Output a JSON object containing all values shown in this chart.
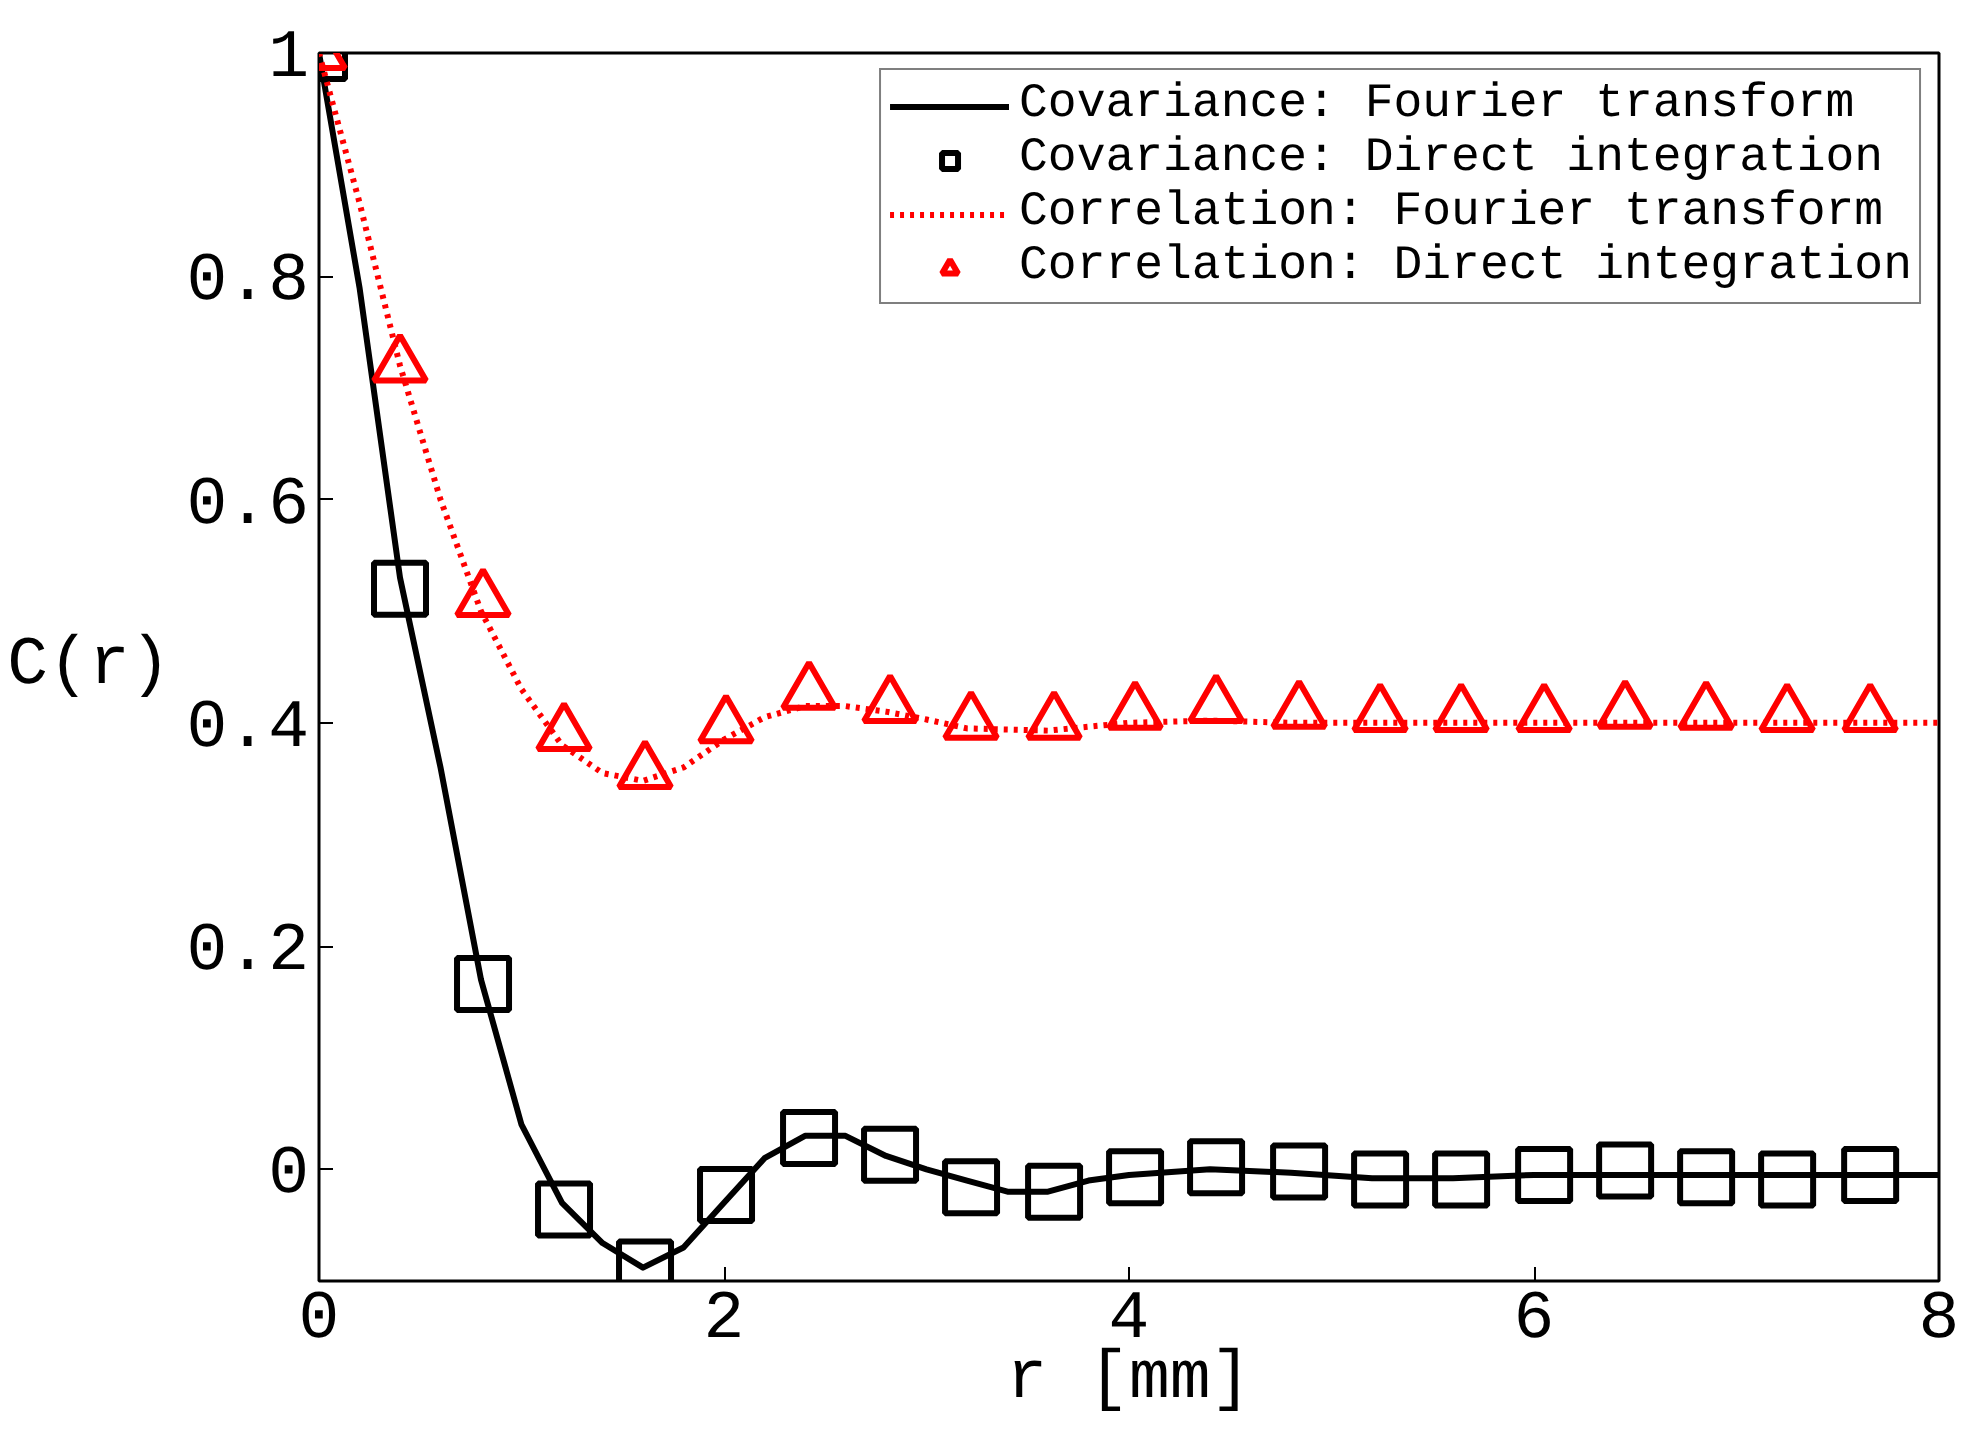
{
  "chart_data": {
    "type": "line",
    "xlabel": "r [mm]",
    "ylabel": "C(r)",
    "xlim": [
      0,
      8
    ],
    "ylim": [
      -0.1,
      1
    ],
    "xticks": [
      0,
      2,
      4,
      6,
      8
    ],
    "yticks": [
      0,
      0.2,
      0.4,
      0.6,
      0.8,
      1
    ],
    "grid": false,
    "legend": "top right",
    "series": [
      {
        "name": "Covariance: Fourier transform",
        "color": "#000000",
        "line_style": "solid",
        "marker": "none",
        "x": [
          0,
          0.2,
          0.4,
          0.6,
          0.8,
          1.0,
          1.2,
          1.4,
          1.6,
          1.8,
          2.0,
          2.2,
          2.4,
          2.6,
          2.8,
          3.0,
          3.2,
          3.4,
          3.6,
          3.8,
          4.0,
          4.4,
          4.8,
          5.2,
          5.6,
          6.0,
          7.0,
          8.0
        ],
        "values": [
          1,
          0.79,
          0.53,
          0.36,
          0.17,
          0.04,
          -0.03,
          -0.066,
          -0.088,
          -0.07,
          -0.03,
          0.01,
          0.03,
          0.03,
          0.012,
          0.0,
          -0.01,
          -0.02,
          -0.02,
          -0.01,
          -0.005,
          0.0,
          -0.003,
          -0.008,
          -0.008,
          -0.005,
          -0.005,
          -0.005
        ]
      },
      {
        "name": "Covariance: Direct integration",
        "type": "scatter",
        "color": "#000000",
        "marker": "square",
        "x": [
          0,
          0.4,
          0.81,
          1.21,
          1.61,
          2.01,
          2.42,
          2.82,
          3.22,
          3.63,
          4.03,
          4.43,
          4.84,
          5.24,
          5.64,
          6.05,
          6.45,
          6.85,
          7.25,
          7.66
        ],
        "values": [
          1,
          0.52,
          0.166,
          -0.036,
          -0.088,
          -0.023,
          0.028,
          0.013,
          -0.016,
          -0.02,
          -0.007,
          0.002,
          -0.002,
          -0.009,
          -0.009,
          -0.005,
          -0.001,
          -0.007,
          -0.009,
          -0.005
        ]
      },
      {
        "name": "Correlation: Fourier transform",
        "color": "#ff0000",
        "line_style": "dotted",
        "marker": "none",
        "x": [
          0,
          0.2,
          0.4,
          0.6,
          0.8,
          1.0,
          1.2,
          1.4,
          1.6,
          1.8,
          2.0,
          2.2,
          2.4,
          2.6,
          2.8,
          3.0,
          3.2,
          3.6,
          4.0,
          4.4,
          4.8,
          6.0,
          8.0
        ],
        "values": [
          1,
          0.866,
          0.72,
          0.6,
          0.5,
          0.43,
          0.38,
          0.355,
          0.348,
          0.36,
          0.385,
          0.405,
          0.415,
          0.415,
          0.41,
          0.403,
          0.395,
          0.393,
          0.4,
          0.402,
          0.4,
          0.4,
          0.4
        ]
      },
      {
        "name": "Correlation: Direct integration",
        "type": "scatter",
        "color": "#ff0000",
        "marker": "triangle",
        "x": [
          0,
          0.4,
          0.81,
          1.21,
          1.61,
          2.01,
          2.42,
          2.82,
          3.22,
          3.63,
          4.03,
          4.43,
          4.84,
          5.24,
          5.64,
          6.05,
          6.45,
          6.85,
          7.25,
          7.66
        ],
        "values": [
          1,
          0.72,
          0.51,
          0.39,
          0.356,
          0.397,
          0.427,
          0.415,
          0.4,
          0.4,
          0.409,
          0.415,
          0.41,
          0.407,
          0.407,
          0.407,
          0.41,
          0.409,
          0.407,
          0.407
        ]
      }
    ]
  }
}
